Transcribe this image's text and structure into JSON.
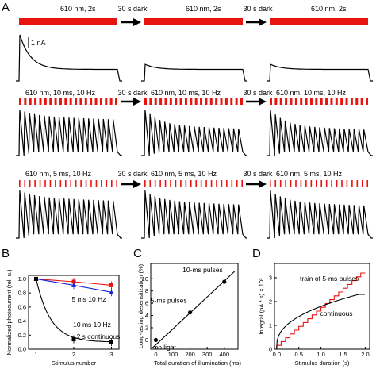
{
  "panel_letters": {
    "a": "A",
    "b": "B",
    "c": "C",
    "d": "D"
  },
  "panel_a": {
    "rows": [
      {
        "stim": "610 nm, 2s",
        "dark": "30 s dark",
        "type": "continuous"
      },
      {
        "stim": "610 nm, 10 ms, 10 Hz",
        "dark": "30 s dark",
        "type": "pulses-10ms"
      },
      {
        "stim": "610 nm, 5 ms, 10 Hz",
        "dark": "30 s dark",
        "type": "pulses-5ms"
      }
    ],
    "scale_bar": "1 nA",
    "colors": {
      "light": "#e8140f",
      "trace": "#000000"
    }
  },
  "chart_data": [
    {
      "panel": "B",
      "type": "line",
      "xlabel": "Stimulus number",
      "ylabel": "Normalized photocurrent (rel. u.)",
      "x_ticks": [
        "1",
        "2",
        "3"
      ],
      "y_ticks": [
        "0.0",
        "0.2",
        "0.4",
        "0.6",
        "0.8",
        "1.0"
      ],
      "xlim": [
        0.8,
        3.2
      ],
      "ylim": [
        0,
        1.05
      ],
      "series": [
        {
          "name": "5 ms 10 Hz",
          "color": "#e8140f",
          "marker": "square",
          "x": [
            1,
            2,
            3
          ],
          "values": [
            1.0,
            0.96,
            0.91
          ]
        },
        {
          "name": "10 ms 10 Hz",
          "color": "#1a22d6",
          "marker": "triangle",
          "x": [
            1,
            2,
            3
          ],
          "values": [
            1.0,
            0.91,
            0.81
          ]
        },
        {
          "name": "2 s continuous",
          "color": "#000000",
          "marker": "square",
          "x": [
            1,
            2,
            3
          ],
          "values": [
            1.0,
            0.14,
            0.1
          ]
        }
      ]
    },
    {
      "panel": "C",
      "type": "scatter",
      "xlabel": "Total duration of illumination (ms)",
      "ylabel": "Long-lasting desensitization (%)",
      "x_ticks": [
        "0",
        "100",
        "200",
        "300",
        "400"
      ],
      "y_ticks": [
        "0",
        "2",
        "4",
        "6",
        "8",
        "10"
      ],
      "xlim": [
        -30,
        480
      ],
      "ylim": [
        -1.5,
        12.5
      ],
      "points": [
        {
          "x": 0,
          "y": 0,
          "label": "no light"
        },
        {
          "x": 200,
          "y": 4.5,
          "label": "5-ms pulses"
        },
        {
          "x": 400,
          "y": 9.5,
          "label": "10-ms pulses"
        }
      ],
      "fit_line": {
        "x": [
          -20,
          460
        ],
        "y": [
          -1.3,
          11.2
        ]
      }
    },
    {
      "panel": "D",
      "type": "line",
      "xlabel": "Stimulus duration (s)",
      "ylabel": "Integral (pA * s) × 10³",
      "x_ticks": [
        "0.0",
        "0.5",
        "1.0",
        "1.5",
        "2.0"
      ],
      "y_ticks": [
        "0",
        "1",
        "2",
        "3"
      ],
      "xlim": [
        -0.05,
        2.1
      ],
      "ylim": [
        0,
        3.6
      ],
      "series": [
        {
          "name": "train of 5-ms pulses",
          "color": "#e8140f",
          "description_fn": "staircase"
        },
        {
          "name": "continuous",
          "color": "#000000",
          "description_fn": "saturating"
        }
      ],
      "series_points": {
        "train": {
          "x": [
            0.0,
            0.5,
            1.0,
            1.5,
            2.0
          ],
          "values": [
            0.0,
            0.8,
            1.6,
            2.4,
            3.2
          ]
        },
        "continuous": {
          "x": [
            0.0,
            0.5,
            1.0,
            1.5,
            2.0
          ],
          "values": [
            0.0,
            1.35,
            1.8,
            2.05,
            2.25
          ]
        }
      }
    }
  ]
}
